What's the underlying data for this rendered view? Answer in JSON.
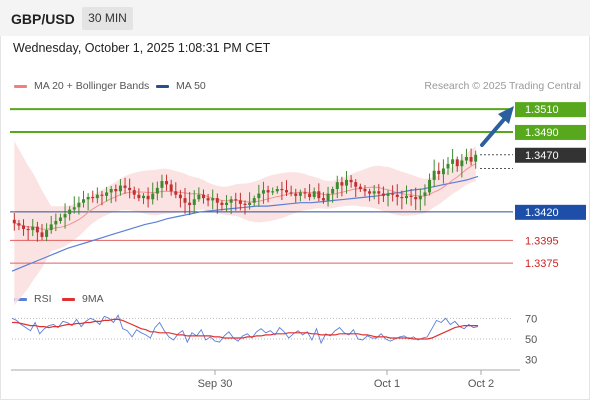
{
  "header": {
    "symbol": "GBP/USD",
    "timeframe": "30 MIN"
  },
  "timestamp": "Wednesday, October 1, 2025 1:08:31 PM CET",
  "credit": "Research © 2025 Trading Central",
  "legend": {
    "items": [
      {
        "label": "MA 20 + Bollinger Bands",
        "color": "#f08080"
      },
      {
        "label": "MA 50",
        "color": "#2c4f8c"
      }
    ],
    "rsi_items": [
      {
        "label": "RSI",
        "color": "#5b7fd9"
      },
      {
        "label": "9MA",
        "color": "#e03030"
      }
    ]
  },
  "colors": {
    "up": "#3d8b2f",
    "down": "#c23030",
    "resistance": "#58a81e",
    "pivot": "#2c4f8c",
    "support": "#e06060",
    "support_text": "#cc2222",
    "current": "#333333",
    "arrow": "#2c5f9e",
    "bb_fill": "#fbe0e0",
    "ma20": "#f08080",
    "ma50": "#5b7fd9"
  },
  "chart_data": [
    {
      "type": "candlestick",
      "title": "GBP/USD",
      "timeframe": "30 MIN",
      "x_ticks": [
        "Sep 30",
        "Oct 1",
        "Oct 2"
      ],
      "ylim": [
        1.3355,
        1.3525
      ],
      "current_price": "1.3470",
      "levels": [
        {
          "value": 1.351,
          "label": "1.3510",
          "kind": "resistance"
        },
        {
          "value": 1.349,
          "label": "1.3490",
          "kind": "resistance"
        },
        {
          "value": 1.342,
          "label": "1.3420",
          "kind": "pivot"
        },
        {
          "value": 1.3395,
          "label": "1.3395",
          "kind": "support"
        },
        {
          "value": 1.3375,
          "label": "1.3375",
          "kind": "support"
        }
      ],
      "close_series": [
        1.341,
        1.3408,
        1.3405,
        1.3404,
        1.3407,
        1.3402,
        1.3398,
        1.3404,
        1.3409,
        1.3412,
        1.3415,
        1.3418,
        1.3422,
        1.3424,
        1.3428,
        1.3431,
        1.3433,
        1.3432,
        1.3435,
        1.3434,
        1.3437,
        1.344,
        1.3438,
        1.3443,
        1.3441,
        1.3439,
        1.3435,
        1.3432,
        1.3434,
        1.3431,
        1.3436,
        1.3441,
        1.3447,
        1.3444,
        1.3438,
        1.3435,
        1.3432,
        1.3428,
        1.3426,
        1.3431,
        1.3435,
        1.3432,
        1.343,
        1.3432,
        1.3428,
        1.3426,
        1.3428,
        1.3431,
        1.343,
        1.3427,
        1.3426,
        1.3428,
        1.3432,
        1.3436,
        1.3439,
        1.3437,
        1.3438,
        1.344,
        1.3439,
        1.3437,
        1.3436,
        1.3434,
        1.3437,
        1.3436,
        1.3433,
        1.3438,
        1.3432,
        1.343,
        1.3436,
        1.344,
        1.3446,
        1.3443,
        1.3448,
        1.3446,
        1.3442,
        1.344,
        1.3438,
        1.3436,
        1.3438,
        1.3436,
        1.3434,
        1.3436,
        1.3435,
        1.3433,
        1.3432,
        1.3434,
        1.3433,
        1.3431,
        1.3434,
        1.3437,
        1.3448,
        1.3456,
        1.3453,
        1.3458,
        1.3462,
        1.3466,
        1.346,
        1.3465,
        1.3468,
        1.3464,
        1.347
      ],
      "ma50_series": [
        1.3368,
        1.3372,
        1.3376,
        1.338,
        1.3384,
        1.3388,
        1.3391,
        1.3394,
        1.3397,
        1.34,
        1.3403,
        1.3406,
        1.3409,
        1.3411,
        1.3414,
        1.3416,
        1.3418,
        1.342,
        1.3421,
        1.3422,
        1.3423,
        1.3424,
        1.3425,
        1.3425,
        1.3426,
        1.3427,
        1.3428,
        1.3428,
        1.3429,
        1.343,
        1.3431,
        1.3432,
        1.3433,
        1.3434,
        1.3436,
        1.3437,
        1.3439,
        1.344,
        1.3442,
        1.3444,
        1.3446,
        1.3448,
        1.3451
      ]
    },
    {
      "type": "line",
      "title": "RSI",
      "ylim": [
        20,
        80
      ],
      "y_ticks": [
        70,
        50,
        30
      ],
      "series": [
        {
          "name": "RSI",
          "values": [
            70,
            68,
            64,
            61,
            58,
            66,
            55,
            60,
            63,
            64,
            61,
            67,
            66,
            63,
            69,
            62,
            67,
            70,
            68,
            64,
            72,
            70,
            66,
            73,
            60,
            58,
            52,
            59,
            56,
            54,
            51,
            61,
            66,
            58,
            52,
            49,
            55,
            58,
            47,
            56,
            53,
            59,
            49,
            52,
            48,
            47,
            53,
            57,
            51,
            48,
            53,
            55,
            51,
            57,
            60,
            56,
            58,
            54,
            61,
            57,
            51,
            55,
            58,
            54,
            57,
            49,
            60,
            46,
            55,
            53,
            58,
            61,
            56,
            54,
            59,
            50,
            49,
            53,
            51,
            51,
            55,
            50,
            48,
            50,
            52,
            53,
            50,
            52,
            49,
            51,
            52,
            60,
            68,
            66,
            70,
            64,
            67,
            62,
            60,
            64,
            61,
            62
          ]
        },
        {
          "name": "9MA",
          "values": [
            66,
            66,
            65,
            64,
            63,
            63,
            62,
            62,
            61,
            62,
            62,
            63,
            64,
            64,
            65,
            65,
            66,
            66,
            67,
            67,
            68,
            68,
            69,
            69,
            68,
            66,
            64,
            62,
            60,
            59,
            57,
            57,
            56,
            56,
            56,
            55,
            54,
            54,
            53,
            53,
            53,
            53,
            53,
            53,
            52,
            52,
            51,
            51,
            51,
            51,
            51,
            52,
            52,
            53,
            53,
            54,
            54,
            55,
            55,
            55,
            56,
            56,
            56,
            56,
            56,
            55,
            55,
            54,
            54,
            54,
            54,
            55,
            55,
            55,
            55,
            55,
            54,
            54,
            53,
            52,
            52,
            52,
            51,
            51,
            51,
            51,
            51,
            50,
            50,
            50,
            50,
            51,
            53,
            55,
            57,
            59,
            61,
            62,
            63,
            63,
            63,
            63
          ]
        }
      ]
    }
  ]
}
